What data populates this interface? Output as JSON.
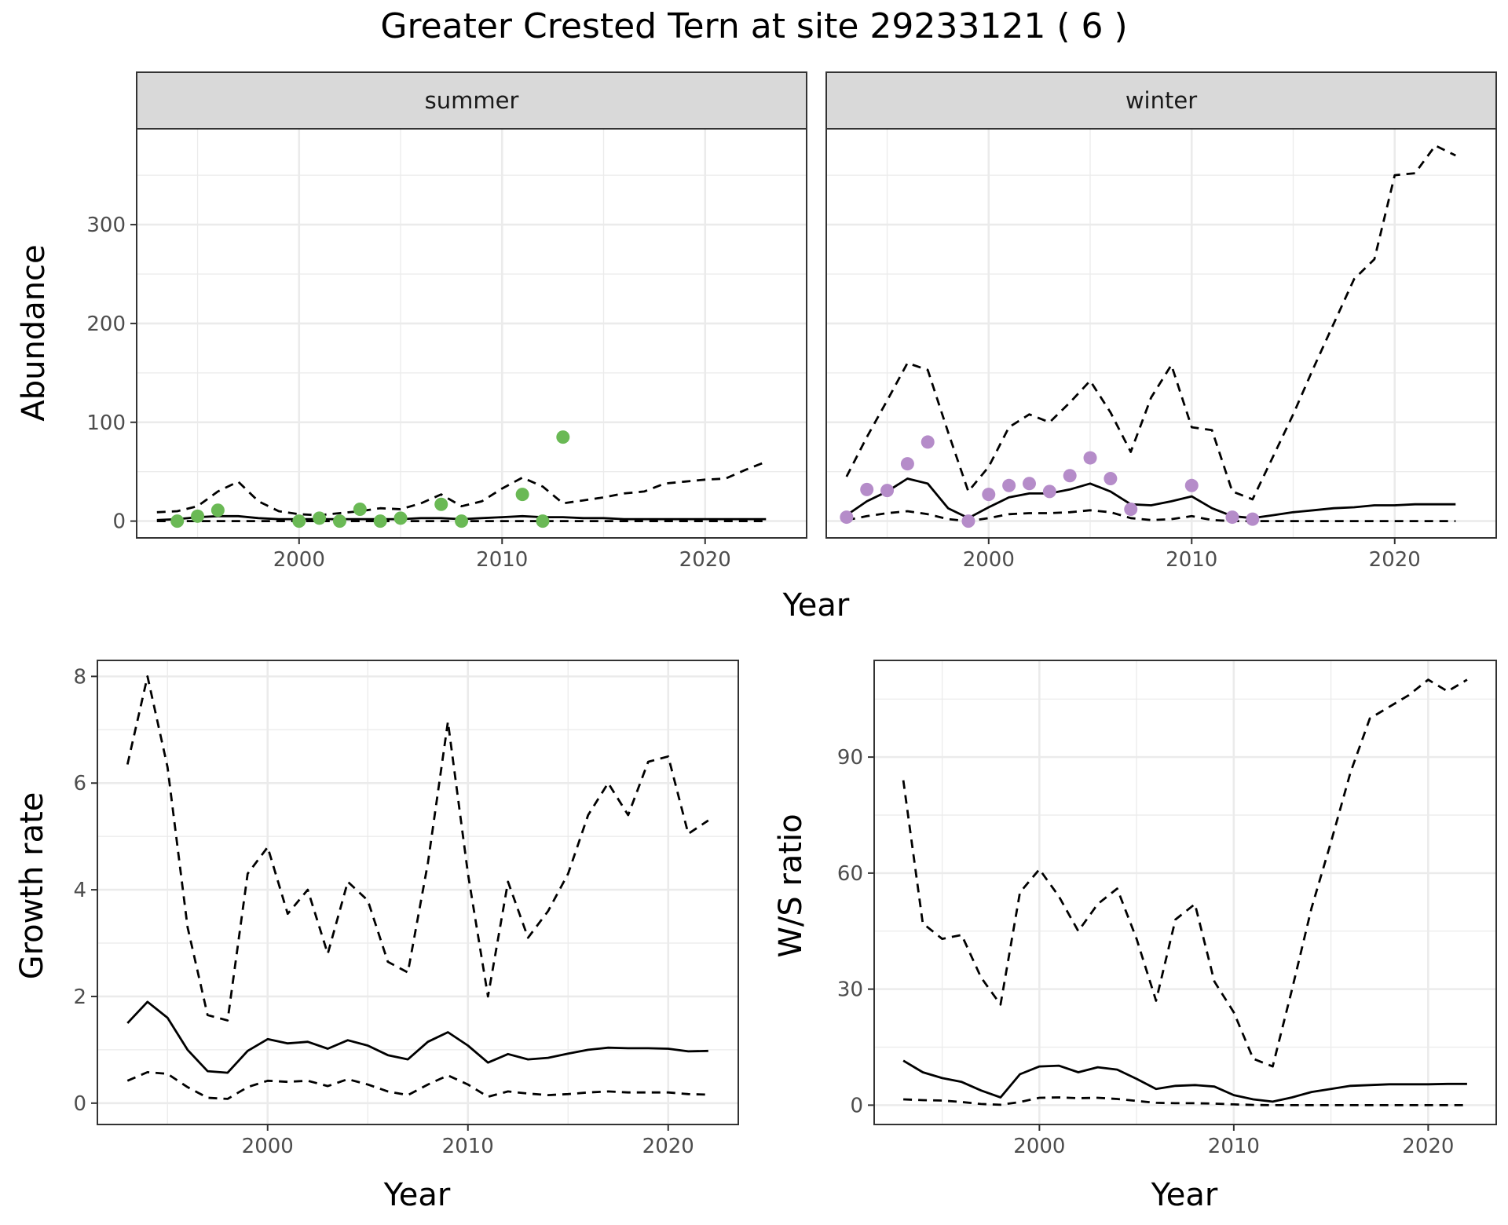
{
  "title": "Greater Crested Tern at site 29233121 ( 6 )",
  "colors": {
    "summer": "#6ab955",
    "winter": "#b58cc9",
    "line": "#000000",
    "strip": "#d9d9d9",
    "grid": "#ebebeb"
  },
  "chart_data": [
    {
      "type": "line",
      "panel": "abundance",
      "title": "Greater Crested Tern at site 29233121 ( 6 )",
      "xlabel": "Year",
      "ylabel": "Abundance",
      "xlim": [
        1992,
        2025
      ],
      "ylim": [
        -17,
        397
      ],
      "xticks": [
        2000,
        2010,
        2020
      ],
      "yticks": [
        0,
        100,
        200,
        300
      ],
      "grid": true,
      "facets": [
        {
          "strip": "summer",
          "point_color": "#6ab955",
          "points": {
            "x": [
              1994,
              1995,
              1996,
              2000,
              2001,
              2002,
              2003,
              2004,
              2005,
              2007,
              2008,
              2011,
              2012,
              2013
            ],
            "y": [
              0,
              5,
              11,
              0,
              3,
              0,
              12,
              0,
              3,
              17,
              0,
              27,
              0,
              85
            ]
          },
          "series": [
            {
              "style": "solid",
              "x": [
                1993,
                1994,
                1995,
                1996,
                1997,
                1998,
                1999,
                2000,
                2001,
                2002,
                2003,
                2004,
                2005,
                2006,
                2007,
                2008,
                2009,
                2010,
                2011,
                2012,
                2013,
                2014,
                2015,
                2016,
                2017,
                2018,
                2019,
                2020,
                2021,
                2022,
                2023
              ],
              "y": [
                1,
                2,
                4,
                5,
                5,
                3,
                2,
                2,
                2,
                2,
                2,
                2,
                2,
                3,
                3,
                2,
                3,
                4,
                5,
                4,
                4,
                3,
                3,
                2,
                2,
                2,
                2,
                2,
                2,
                2,
                2
              ]
            },
            {
              "style": "dashed",
              "x": [
                1993,
                1994,
                1995,
                1996,
                1997,
                1998,
                1999,
                2000,
                2001,
                2002,
                2003,
                2004,
                2005,
                2006,
                2007,
                2008,
                2009,
                2010,
                2011,
                2012,
                2013,
                2014,
                2015,
                2016,
                2017,
                2018,
                2019,
                2020,
                2021,
                2022,
                2023
              ],
              "y": [
                9,
                10,
                15,
                30,
                40,
                20,
                10,
                7,
                6,
                8,
                10,
                13,
                12,
                18,
                27,
                15,
                20,
                33,
                44,
                35,
                18,
                21,
                24,
                28,
                30,
                38,
                40,
                42,
                43,
                52,
                60
              ]
            },
            {
              "style": "dashed",
              "x": [
                1993,
                1994,
                1995,
                1996,
                1997,
                1998,
                1999,
                2000,
                2001,
                2002,
                2003,
                2004,
                2005,
                2006,
                2007,
                2008,
                2009,
                2010,
                2011,
                2012,
                2013,
                2014,
                2015,
                2016,
                2017,
                2018,
                2019,
                2020,
                2021,
                2022,
                2023
              ],
              "y": [
                0,
                0,
                0,
                0,
                0,
                0,
                0,
                0,
                0,
                0,
                0,
                0,
                0,
                0,
                0,
                0,
                0,
                0,
                0,
                0,
                0,
                0,
                0,
                0,
                0,
                0,
                0,
                0,
                0,
                0,
                0
              ]
            }
          ]
        },
        {
          "strip": "winter",
          "point_color": "#b58cc9",
          "points": {
            "x": [
              1993,
              1994,
              1995,
              1996,
              1997,
              1999,
              2000,
              2001,
              2002,
              2003,
              2004,
              2005,
              2006,
              2007,
              2010,
              2012,
              2013
            ],
            "y": [
              4,
              32,
              31,
              58,
              80,
              0,
              27,
              36,
              38,
              30,
              46,
              64,
              43,
              12,
              36,
              4,
              2
            ]
          },
          "series": [
            {
              "style": "solid",
              "x": [
                1993,
                1994,
                1995,
                1996,
                1997,
                1998,
                1999,
                2000,
                2001,
                2002,
                2003,
                2004,
                2005,
                2006,
                2007,
                2008,
                2009,
                2010,
                2011,
                2012,
                2013,
                2014,
                2015,
                2016,
                2017,
                2018,
                2019,
                2020,
                2021,
                2022,
                2023
              ],
              "y": [
                6,
                20,
                30,
                43,
                38,
                13,
                3,
                14,
                24,
                28,
                28,
                32,
                38,
                30,
                17,
                16,
                20,
                25,
                13,
                5,
                3,
                6,
                9,
                11,
                13,
                14,
                16,
                16,
                17,
                17,
                17
              ]
            },
            {
              "style": "dashed",
              "x": [
                1993,
                1994,
                1995,
                1996,
                1997,
                1998,
                1999,
                2000,
                2001,
                2002,
                2003,
                2004,
                2005,
                2006,
                2007,
                2008,
                2009,
                2010,
                2011,
                2012,
                2013,
                2014,
                2015,
                2016,
                2017,
                2018,
                2019,
                2020,
                2021,
                2022,
                2023
              ],
              "y": [
                45,
                85,
                122,
                160,
                153,
                90,
                30,
                55,
                95,
                108,
                100,
                120,
                142,
                110,
                70,
                125,
                158,
                95,
                92,
                30,
                22,
                65,
                108,
                155,
                200,
                245,
                265,
                350,
                352,
                380,
                370
              ]
            },
            {
              "style": "dashed",
              "x": [
                1993,
                1994,
                1995,
                1996,
                1997,
                1998,
                1999,
                2000,
                2001,
                2002,
                2003,
                2004,
                2005,
                2006,
                2007,
                2008,
                2009,
                2010,
                2011,
                2012,
                2013,
                2014,
                2015,
                2016,
                2017,
                2018,
                2019,
                2020,
                2021,
                2022,
                2023
              ],
              "y": [
                1,
                5,
                8,
                10,
                7,
                2,
                0,
                3,
                7,
                8,
                8,
                9,
                11,
                9,
                3,
                1,
                2,
                5,
                1,
                0,
                0,
                0,
                0,
                0,
                0,
                0,
                0,
                0,
                0,
                0,
                0
              ]
            }
          ]
        }
      ]
    },
    {
      "type": "line",
      "panel": "growth",
      "xlabel": "Year",
      "ylabel": "Growth rate",
      "xlim": [
        1991.5,
        2023.5
      ],
      "ylim": [
        -0.4,
        8.3
      ],
      "xticks": [
        2000,
        2010,
        2020
      ],
      "yticks": [
        0,
        2,
        4,
        6,
        8
      ],
      "grid": true,
      "series": [
        {
          "style": "solid",
          "x": [
            1993,
            1994,
            1995,
            1996,
            1997,
            1998,
            1999,
            2000,
            2001,
            2002,
            2003,
            2004,
            2005,
            2006,
            2007,
            2008,
            2009,
            2010,
            2011,
            2012,
            2013,
            2014,
            2015,
            2016,
            2017,
            2018,
            2019,
            2020,
            2021,
            2022
          ],
          "y": [
            1.5,
            1.9,
            1.6,
            1.0,
            0.6,
            0.57,
            0.98,
            1.2,
            1.12,
            1.15,
            1.02,
            1.18,
            1.08,
            0.9,
            0.82,
            1.15,
            1.33,
            1.08,
            0.76,
            0.92,
            0.82,
            0.85,
            0.93,
            1.0,
            1.04,
            1.03,
            1.03,
            1.02,
            0.97,
            0.98
          ]
        },
        {
          "style": "dashed",
          "x": [
            1993,
            1994,
            1995,
            1996,
            1997,
            1998,
            1999,
            2000,
            2001,
            2002,
            2003,
            2004,
            2005,
            2006,
            2007,
            2008,
            2009,
            2010,
            2011,
            2012,
            2013,
            2014,
            2015,
            2016,
            2017,
            2018,
            2019,
            2020,
            2021,
            2022
          ],
          "y": [
            6.35,
            8.0,
            6.3,
            3.3,
            1.65,
            1.55,
            4.3,
            4.8,
            3.55,
            4.0,
            2.8,
            4.15,
            3.8,
            2.65,
            2.45,
            4.5,
            7.15,
            4.3,
            2.0,
            4.15,
            3.1,
            3.6,
            4.3,
            5.4,
            6.0,
            5.4,
            6.4,
            6.5,
            5.05,
            5.3
          ]
        },
        {
          "style": "dashed",
          "x": [
            1993,
            1994,
            1995,
            1996,
            1997,
            1998,
            1999,
            2000,
            2001,
            2002,
            2003,
            2004,
            2005,
            2006,
            2007,
            2008,
            2009,
            2010,
            2011,
            2012,
            2013,
            2014,
            2015,
            2016,
            2017,
            2018,
            2019,
            2020,
            2021,
            2022
          ],
          "y": [
            0.42,
            0.58,
            0.55,
            0.3,
            0.1,
            0.08,
            0.3,
            0.42,
            0.4,
            0.42,
            0.32,
            0.45,
            0.35,
            0.22,
            0.15,
            0.35,
            0.52,
            0.35,
            0.12,
            0.22,
            0.18,
            0.15,
            0.17,
            0.2,
            0.22,
            0.2,
            0.2,
            0.2,
            0.17,
            0.16
          ]
        }
      ]
    },
    {
      "type": "line",
      "panel": "ratio",
      "xlabel": "Year",
      "ylabel": "W/S ratio",
      "xlim": [
        1991.5,
        2023.5
      ],
      "ylim": [
        -5,
        115
      ],
      "xticks": [
        2000,
        2010,
        2020
      ],
      "yticks": [
        0,
        30,
        60,
        90
      ],
      "grid": true,
      "series": [
        {
          "style": "solid",
          "x": [
            1993,
            1994,
            1995,
            1996,
            1997,
            1998,
            1999,
            2000,
            2001,
            2002,
            2003,
            2004,
            2005,
            2006,
            2007,
            2008,
            2009,
            2010,
            2011,
            2012,
            2013,
            2014,
            2015,
            2016,
            2017,
            2018,
            2019,
            2020,
            2021,
            2022
          ],
          "y": [
            11.5,
            8.5,
            7,
            6,
            3.8,
            2,
            8,
            10,
            10.2,
            8.5,
            9.8,
            9.2,
            6.8,
            4.2,
            5,
            5.2,
            4.8,
            2.6,
            1.5,
            0.9,
            2,
            3.4,
            4.2,
            5,
            5.2,
            5.4,
            5.4,
            5.4,
            5.5,
            5.5
          ]
        },
        {
          "style": "dashed",
          "x": [
            1993,
            1994,
            1995,
            1996,
            1997,
            1998,
            1999,
            2000,
            2001,
            2002,
            2003,
            2004,
            2005,
            2006,
            2007,
            2008,
            2009,
            2010,
            2011,
            2012,
            2013,
            2014,
            2015,
            2016,
            2017,
            2018,
            2019,
            2020,
            2021,
            2022
          ],
          "y": [
            84,
            47,
            43,
            44,
            33,
            26,
            55,
            61,
            54,
            45,
            52,
            56,
            43,
            27,
            48,
            52,
            32,
            24,
            12,
            10,
            30,
            51,
            68,
            86,
            100,
            103,
            106,
            110,
            107,
            110
          ]
        },
        {
          "style": "dashed",
          "x": [
            1993,
            1994,
            1995,
            1996,
            1997,
            1998,
            1999,
            2000,
            2001,
            2002,
            2003,
            2004,
            2005,
            2006,
            2007,
            2008,
            2009,
            2010,
            2011,
            2012,
            2013,
            2014,
            2015,
            2016,
            2017,
            2018,
            2019,
            2020,
            2021,
            2022
          ],
          "y": [
            1.5,
            1.3,
            1.2,
            0.8,
            0.3,
            0.1,
            0.8,
            1.9,
            2,
            1.8,
            1.9,
            1.6,
            1.1,
            0.6,
            0.5,
            0.5,
            0.4,
            0.2,
            0.05,
            0,
            0,
            0,
            0,
            0,
            0,
            0,
            0,
            0,
            0,
            0
          ]
        }
      ]
    }
  ]
}
